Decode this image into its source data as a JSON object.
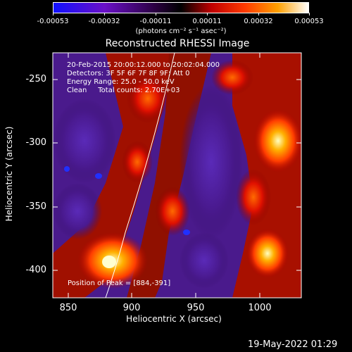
{
  "colorbar": {
    "tick_labels": [
      "-0.00053",
      "-0.00032",
      "-0.00011",
      "0.00011",
      "0.00032",
      "0.00053"
    ],
    "units": "(photons cm⁻² s⁻¹ asec⁻²)",
    "colors": [
      "#0000ff",
      "#5a00a0",
      "#000000",
      "#ff0000",
      "#ff8c00",
      "#ffff80",
      "#ffffff"
    ]
  },
  "title": "Reconstructed RHESSI Image",
  "info": {
    "time_range": "20-Feb-2015 20:00:12.000 to 20:02:04.000",
    "detectors": "Detectors: 3F 5F 6F 7F 8F 9F; Att 0",
    "energy": "Energy Range: 25.0 - 50.0 keV",
    "clean": "Clean     Total counts: 2.70E+03"
  },
  "peak_label": "Position of Peak = [884,-391]",
  "axes": {
    "xlabel": "Heliocentric X (arcsec)",
    "ylabel": "Heliocentric Y (arcsec)",
    "x_ticks": [
      "850",
      "900",
      "950",
      "1000"
    ],
    "y_ticks": [
      "-250",
      "-300",
      "-350",
      "-400"
    ]
  },
  "timestamp": "19-May-2022 01:29"
}
